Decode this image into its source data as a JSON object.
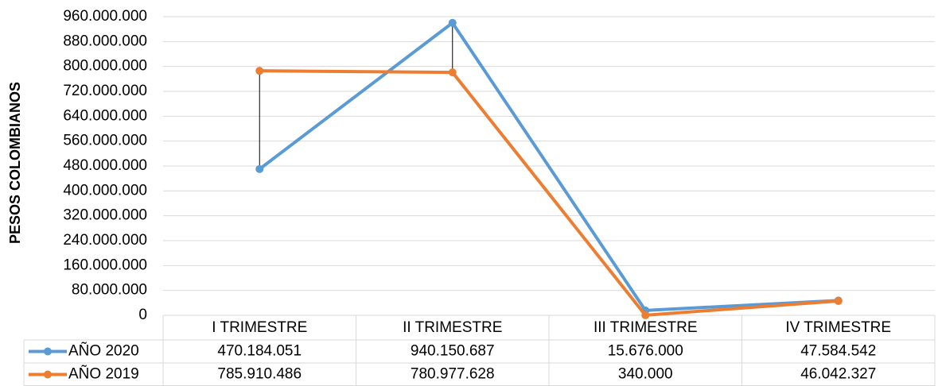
{
  "chart_data": {
    "type": "line",
    "y_label": "PESOS COLOMBIANOS",
    "categories": [
      "I TRIMESTRE",
      "II TRIMESTRE",
      "III TRIMESTRE",
      "IV TRIMESTRE"
    ],
    "series": [
      {
        "name": "AÑO 2020",
        "color": "#5b9bd5",
        "values": [
          470184051,
          940150687,
          15676000,
          47584542
        ],
        "value_labels": [
          "470.184.051",
          "940.150.687",
          "15.676.000",
          "47.584.542"
        ]
      },
      {
        "name": "AÑO 2019",
        "color": "#ed7d31",
        "values": [
          785910486,
          780977628,
          340000,
          46042327
        ],
        "value_labels": [
          "785.910.486",
          "780.977.628",
          "340.000",
          "46.042.327"
        ]
      }
    ],
    "ylim": [
      0,
      960000000
    ],
    "yticks": [
      0,
      {
        "value": 80000000,
        "label": "80.000.000"
      },
      {
        "value": 160000000,
        "label": "160.000.000"
      },
      {
        "value": 240000000,
        "label": "240.000.000"
      },
      {
        "value": 320000000,
        "label": "320.000.000"
      },
      {
        "value": 400000000,
        "label": "400.000.000"
      },
      {
        "value": 480000000,
        "label": "480.000.000"
      },
      {
        "value": 560000000,
        "label": "560.000.000"
      },
      {
        "value": 640000000,
        "label": "640.000.000"
      },
      {
        "value": 720000000,
        "label": "720.000.000"
      },
      {
        "value": 800000000,
        "label": "800.000.000"
      },
      {
        "value": 880000000,
        "label": "880.000.000"
      },
      {
        "value": 960000000,
        "label": "960.000.000"
      }
    ],
    "grid": true,
    "high_low_lines": true
  }
}
